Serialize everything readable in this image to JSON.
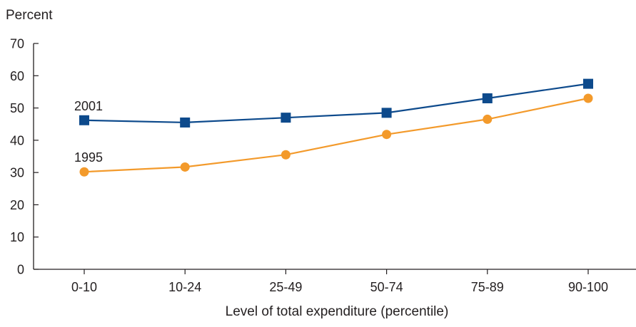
{
  "chart_data": {
    "type": "line",
    "title": "",
    "ylabel": "Percent",
    "xlabel": "Level of total expenditure (percentile)",
    "categories": [
      "0-10",
      "10-24",
      "25-49",
      "50-74",
      "75-89",
      "90-100"
    ],
    "ylim": [
      0,
      70
    ],
    "yticks": [
      0,
      10,
      20,
      30,
      40,
      50,
      60,
      70
    ],
    "grid": false,
    "legend": "none; series labeled inline at left",
    "series": [
      {
        "name": "2001",
        "marker": "square",
        "color": "#0d4a8c",
        "values": [
          46.2,
          45.5,
          47.0,
          48.5,
          53.0,
          57.5
        ]
      },
      {
        "name": "1995",
        "marker": "circle",
        "color": "#f39a2b",
        "values": [
          30.2,
          31.7,
          35.5,
          41.8,
          46.5,
          53.0
        ]
      }
    ]
  }
}
